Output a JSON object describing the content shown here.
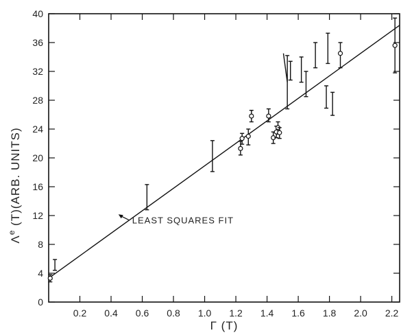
{
  "chart_data": {
    "type": "scatter",
    "title": "",
    "xlabel": "Γ (T)",
    "ylabel": "Λe (T)(ARB. UNITS)",
    "ylabel_main": "Λ",
    "ylabel_sup": "e",
    "ylabel_rest": " (T)(ARB. UNITS)",
    "xlim": [
      0,
      2.25
    ],
    "ylim": [
      0,
      40
    ],
    "x_ticks": [
      "0.2",
      "0.4",
      "0.6",
      "0.8",
      "1.0",
      "1.2",
      "1.4",
      "1.6",
      "1.8",
      "2.0",
      "2.2"
    ],
    "y_ticks": [
      "0",
      "4",
      "8",
      "12",
      "16",
      "20",
      "24",
      "28",
      "32",
      "36",
      "40"
    ],
    "grid": false,
    "points": [
      {
        "x": 0.01,
        "y": 3.3,
        "low": 2.8,
        "high": 3.8,
        "marker": "circle"
      },
      {
        "x": 0.04,
        "y": 5.2,
        "low": 4.4,
        "high": 5.9,
        "marker": "none"
      },
      {
        "x": 0.63,
        "y": 14.6,
        "low": 12.8,
        "high": 16.3,
        "marker": "none"
      },
      {
        "x": 1.05,
        "y": 20.2,
        "low": 18.1,
        "high": 22.4,
        "marker": "none"
      },
      {
        "x": 1.23,
        "y": 21.3,
        "low": 20.4,
        "high": 22.3,
        "marker": "circle"
      },
      {
        "x": 1.24,
        "y": 22.7,
        "low": 21.9,
        "high": 23.4,
        "marker": "circle"
      },
      {
        "x": 1.28,
        "y": 23.0,
        "low": 21.8,
        "high": 24.0,
        "marker": "circle"
      },
      {
        "x": 1.3,
        "y": 25.8,
        "low": 25.0,
        "high": 26.6,
        "marker": "circle"
      },
      {
        "x": 1.41,
        "y": 25.8,
        "low": 25.0,
        "high": 26.8,
        "marker": "circle"
      },
      {
        "x": 1.44,
        "y": 22.8,
        "low": 22.0,
        "high": 23.6,
        "marker": "circle"
      },
      {
        "x": 1.46,
        "y": 23.6,
        "low": 22.8,
        "high": 24.4,
        "marker": "circle"
      },
      {
        "x": 1.47,
        "y": 24.2,
        "low": 23.3,
        "high": 25.0,
        "marker": "circle"
      },
      {
        "x": 1.48,
        "y": 23.5,
        "low": 22.7,
        "high": 24.2,
        "marker": "circle"
      },
      {
        "x": 1.53,
        "y": 30.5,
        "low": 26.8,
        "high": 34.2,
        "marker": "none"
      },
      {
        "x": 1.55,
        "y": 32.0,
        "low": 30.8,
        "high": 33.4,
        "marker": "none"
      },
      {
        "x": 1.62,
        "y": 32.2,
        "low": 30.5,
        "high": 34.0,
        "marker": "none"
      },
      {
        "x": 1.65,
        "y": 30.2,
        "low": 28.5,
        "high": 32.0,
        "marker": "none"
      },
      {
        "x": 1.71,
        "y": 34.2,
        "low": 32.5,
        "high": 36.0,
        "marker": "none"
      },
      {
        "x": 1.78,
        "y": 28.5,
        "low": 26.9,
        "high": 30.0,
        "marker": "none"
      },
      {
        "x": 1.79,
        "y": 35.2,
        "low": 33.1,
        "high": 37.3,
        "marker": "none"
      },
      {
        "x": 1.82,
        "y": 27.5,
        "low": 25.9,
        "high": 29.1,
        "marker": "none"
      },
      {
        "x": 1.87,
        "y": 34.5,
        "low": 32.5,
        "high": 36.0,
        "marker": "circle"
      },
      {
        "x": 2.22,
        "y": 35.6,
        "low": 31.8,
        "high": 39.4,
        "marker": "circle"
      }
    ],
    "connector": {
      "x": [
        1.505,
        1.53
      ],
      "y": [
        34.5,
        30.5
      ]
    },
    "fit_line": {
      "x": [
        0,
        2.25
      ],
      "y": [
        3.3,
        38.4
      ],
      "label": "LEAST SQUARES FIT",
      "label_at": {
        "x": 0.5,
        "y": 11.4
      }
    }
  }
}
